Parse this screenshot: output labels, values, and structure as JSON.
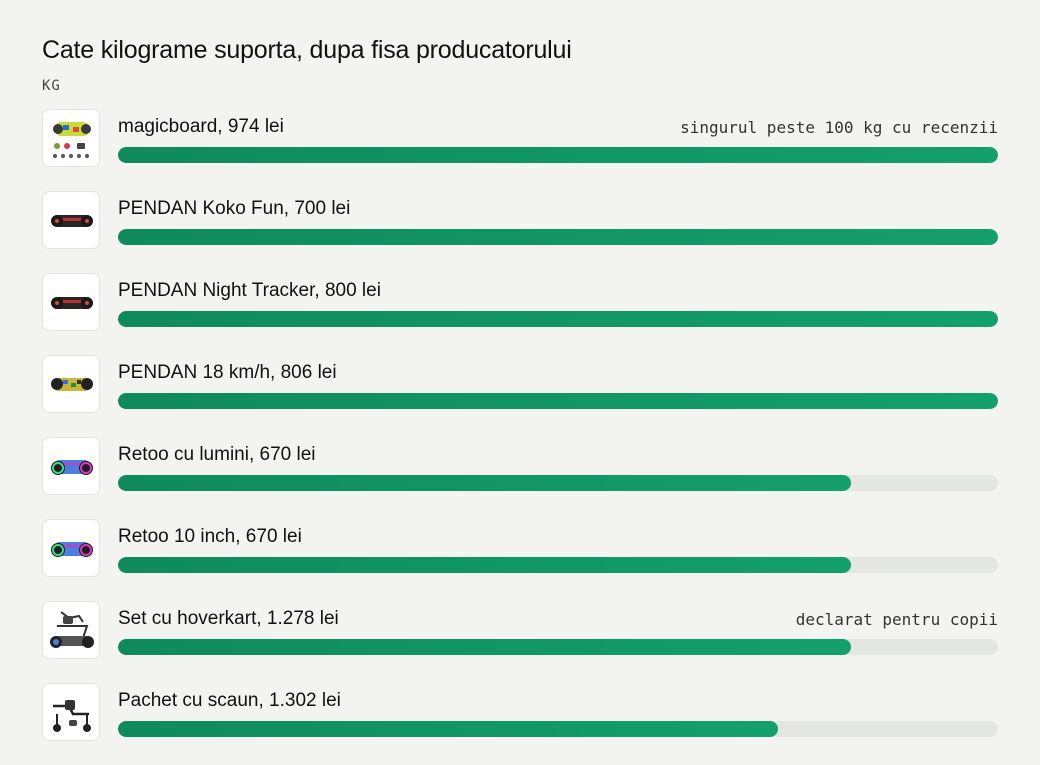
{
  "header": {
    "title": "Cate kilograme suporta, dupa fisa producatorului",
    "unit": "KG"
  },
  "colors": {
    "bar_fill": "#11955f",
    "bar_track": "#e4e6e1",
    "background": "#f3f4f1"
  },
  "chart_data": {
    "type": "bar",
    "orientation": "horizontal",
    "title": "Cate kilograme suporta, dupa fisa producatorului",
    "ylabel": "KG",
    "categories": [
      "magicboard, 974 lei",
      "PENDAN Koko Fun, 700 lei",
      "PENDAN Night Tracker, 800 lei",
      "PENDAN 18 km/h, 806 lei",
      "Retoo cu lumini, 670 lei",
      "Retoo 10 inch, 670 lei",
      "Set cu hoverkart, 1.278 lei",
      "Pachet cu scaun, 1.302 lei"
    ],
    "values": [
      120,
      120,
      120,
      120,
      100,
      100,
      100,
      90
    ],
    "xlim": [
      0,
      120
    ],
    "annotations": [
      "singurul peste 100 kg cu recenzii",
      "",
      "",
      "",
      "",
      "",
      "declarat pentru copii",
      ""
    ],
    "thumbnails": [
      "hoverboard-bundle-icon",
      "hoverboard-dark-icon",
      "hoverboard-dark-icon",
      "hoverboard-camo-icon",
      "hoverboard-lights-icon",
      "hoverboard-lights-icon",
      "hoverkart-set-icon",
      "hoverkart-seat-icon"
    ]
  }
}
